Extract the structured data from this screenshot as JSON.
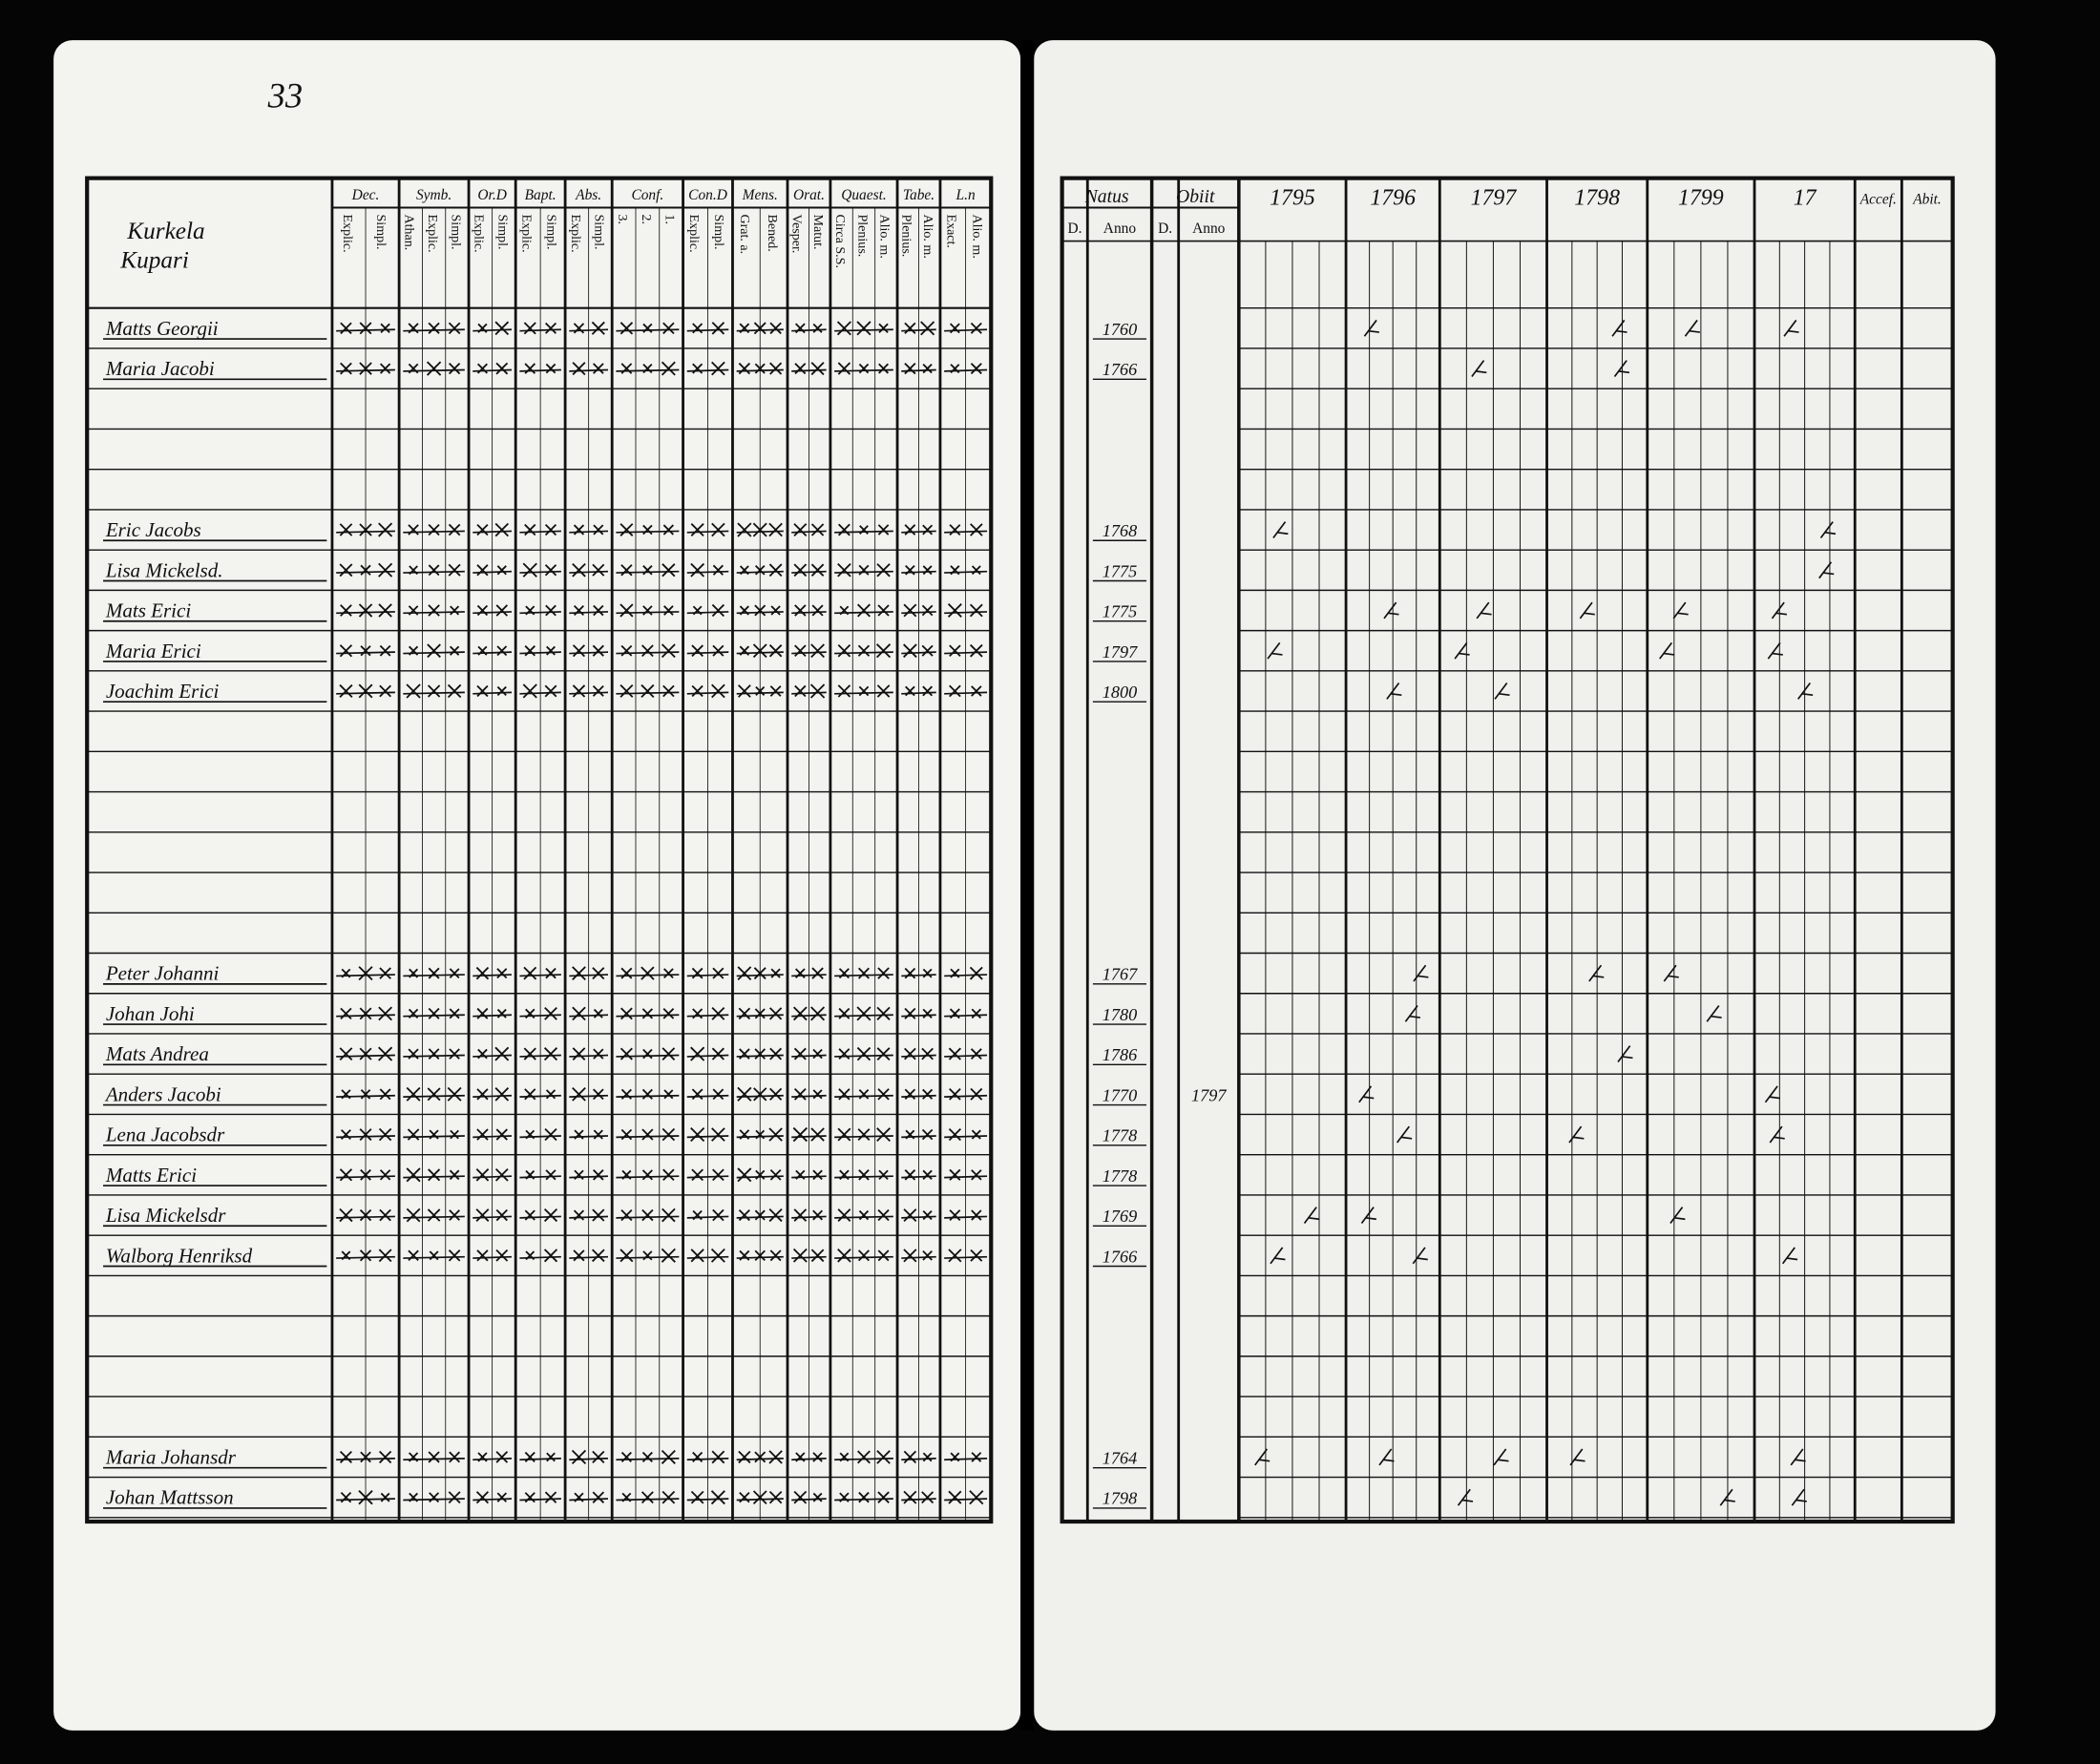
{
  "header": {
    "page_number": "33"
  },
  "left": {
    "title": [
      "Kurkela",
      "Kupari"
    ],
    "columns": [
      {
        "head": "Dec.",
        "sub": [
          "Explic.",
          "Simpl."
        ]
      },
      {
        "head": "Symb.",
        "sub": [
          "Athan.",
          "Explic.",
          "Simpl."
        ]
      },
      {
        "head": "Or.D",
        "sub": [
          "Explic.",
          "Simpl."
        ]
      },
      {
        "head": "Bapt.",
        "sub": [
          "Explic.",
          "Simpl."
        ]
      },
      {
        "head": "Abs.",
        "sub": [
          "Explic.",
          "Simpl."
        ]
      },
      {
        "head": "Conf.",
        "sub": [
          "3.",
          "2.",
          "1."
        ]
      },
      {
        "head": "Con.D",
        "sub": [
          "Explic.",
          "Simpl."
        ]
      },
      {
        "head": "Mens.",
        "sub": [
          "Grat. a.",
          "Bened."
        ]
      },
      {
        "head": "Orat.",
        "sub": [
          "Vesper.",
          "Matut."
        ]
      },
      {
        "head": "Quaest.",
        "sub": [
          "Circa S.S.",
          "Plenius.",
          "Alio. m."
        ]
      },
      {
        "head": "Tabe.",
        "sub": [
          "Plenius.",
          "Alio. m."
        ]
      },
      {
        "head": "L.n",
        "sub": [
          "Exact.",
          "Alio. m."
        ]
      }
    ],
    "rows": [
      {
        "name": "Matts Georgii",
        "born": 1760
      },
      {
        "name": "Maria Jacobi",
        "born": 1766
      },
      null,
      null,
      null,
      {
        "name": "Eric Jacobs",
        "born": 1768
      },
      {
        "name": "Lisa Mickelsd.",
        "born": 1775
      },
      {
        "name": "Mats Erici",
        "born": 1775
      },
      {
        "name": "Maria Erici",
        "born": 1797
      },
      {
        "name": "Joachim Erici",
        "born": 1800
      },
      null,
      null,
      null,
      null,
      null,
      null,
      {
        "name": "Peter Johanni",
        "born": 1767
      },
      {
        "name": "Johan Johi",
        "born": 1780
      },
      {
        "name": "Mats Andrea",
        "born": 1786
      },
      {
        "name": "Anders Jacobi",
        "born": 1770,
        "died": 1797
      },
      {
        "name": "Lena Jacobsdr",
        "born": 1778
      },
      {
        "name": "Matts Erici",
        "born": 1778
      },
      {
        "name": "Lisa Mickelsdr",
        "born": 1769
      },
      {
        "name": "Walborg Henriksd",
        "born": 1766
      },
      null,
      null,
      null,
      null,
      {
        "name": "Maria Johansdr",
        "born": 1764
      },
      {
        "name": "Johan Mattsson",
        "born": 1798
      }
    ]
  },
  "right": {
    "natus": {
      "head": "Natus",
      "sub": [
        "D.",
        "Anno"
      ]
    },
    "obiit": {
      "head": "Obiit",
      "sub": [
        "D.",
        "Anno"
      ]
    },
    "years": [
      1795,
      1796,
      1797,
      1798,
      1799,
      17
    ],
    "accessit": "Accef.",
    "abiit": "Abit."
  }
}
